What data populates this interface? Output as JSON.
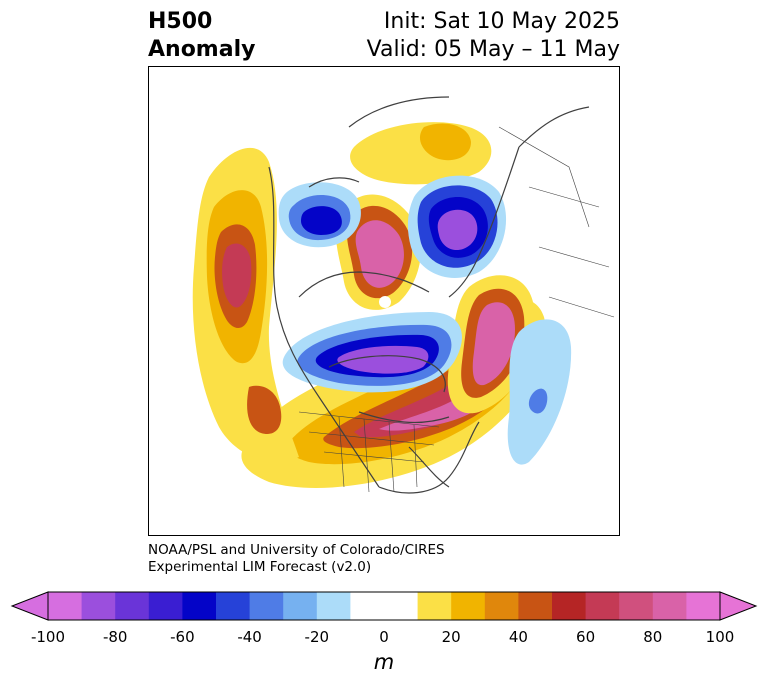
{
  "title": {
    "left_line1": "H500",
    "left_line2": "Anomaly",
    "right_line1": "Init: Sat 10 May 2025",
    "right_line2": "Valid: 05 May – 11 May"
  },
  "credit": {
    "line1": "NOAA/PSL and University of Colorado/CIRES",
    "line2": "Experimental LIM Forecast (v2.0)"
  },
  "colorbar": {
    "unit": "m",
    "ticks": [
      "-100",
      "-80",
      "-60",
      "-40",
      "-20",
      "0",
      "20",
      "40",
      "60",
      "80",
      "100"
    ],
    "colors": [
      "#d66ee0",
      "#9b4fdd",
      "#6a34d8",
      "#3a1ed2",
      "#0404c8",
      "#2642d8",
      "#4f7ce6",
      "#76b1f0",
      "#acdcf9",
      "#ffffff",
      "#ffffff",
      "#fbe046",
      "#f1b400",
      "#e0870c",
      "#c85414",
      "#b52525",
      "#c43a55",
      "#d0507e",
      "#d962a8",
      "#e673d6"
    ]
  },
  "map": {
    "projection": "polar stereographic, North America",
    "anomalies": [
      {
        "name": "northeast-us-high",
        "value": 100
      },
      {
        "name": "north-pacific-high",
        "value": 60
      },
      {
        "name": "arctic-high",
        "value": 100
      },
      {
        "name": "canada-low",
        "value": -100
      },
      {
        "name": "siberia-low",
        "value": -100
      },
      {
        "name": "north-atlantic-high",
        "value": 100
      },
      {
        "name": "alaska-region-low",
        "value": -60
      }
    ]
  }
}
